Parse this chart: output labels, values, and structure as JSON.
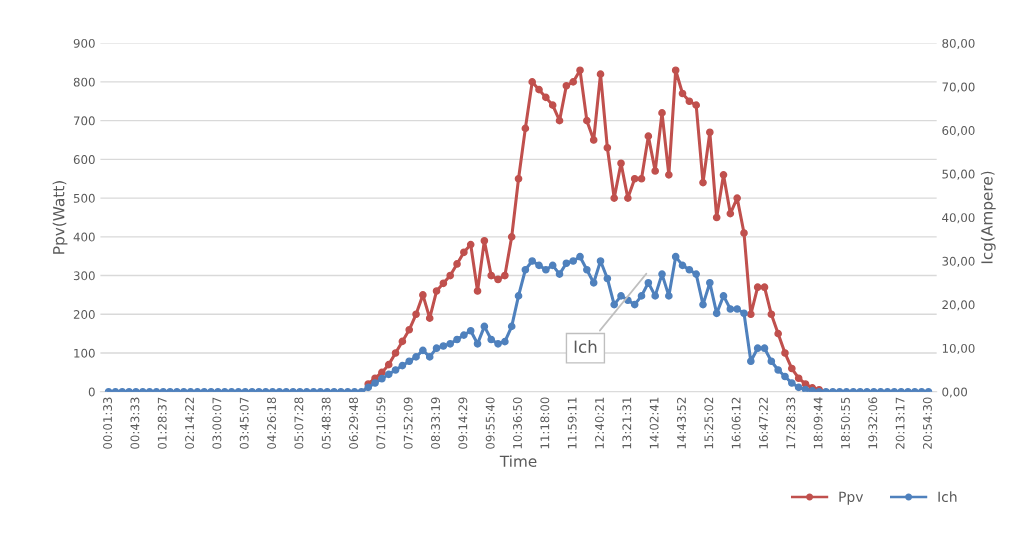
{
  "chart_data": {
    "type": "line",
    "xlabel": "Time",
    "ylabel": "Ppv(Watt)",
    "y2label": "Icg(Ampere)",
    "categories": [
      "00:01:33",
      null,
      null,
      null,
      "00:43:33",
      null,
      null,
      null,
      "01:28:37",
      null,
      null,
      null,
      "02:14:22",
      null,
      null,
      null,
      "03:00:07",
      null,
      null,
      null,
      "03:45:07",
      null,
      null,
      null,
      "04:26:18",
      null,
      null,
      null,
      "05:07:28",
      null,
      null,
      null,
      "05:48:38",
      null,
      null,
      null,
      "06:29:48",
      null,
      null,
      null,
      "07:10:59",
      null,
      null,
      null,
      "07:52:09",
      null,
      null,
      null,
      "08:33:19",
      null,
      null,
      null,
      "09:14:29",
      null,
      null,
      null,
      "09:55:40",
      null,
      null,
      null,
      "10:36:50",
      null,
      null,
      null,
      "11:18:00",
      null,
      null,
      null,
      "11:59:11",
      null,
      null,
      null,
      "12:40:21",
      null,
      null,
      null,
      "13:21:31",
      null,
      null,
      null,
      "14:02:41",
      null,
      null,
      null,
      "14:43:52",
      null,
      null,
      null,
      "15:25:02",
      null,
      null,
      null,
      "16:06:12",
      null,
      null,
      null,
      "16:47:22",
      null,
      null,
      null,
      "17:28:33",
      null,
      null,
      null,
      "18:09:44",
      null,
      null,
      null,
      "18:50:55",
      null,
      null,
      null,
      "19:32:06",
      null,
      null,
      null,
      "20:13:17",
      null,
      null,
      null,
      "20:54:30"
    ],
    "series": [
      {
        "name": "Ppv",
        "color": "#c0504d",
        "values": [
          null,
          null,
          null,
          null,
          null,
          null,
          null,
          null,
          null,
          null,
          null,
          null,
          null,
          null,
          null,
          null,
          null,
          null,
          null,
          null,
          null,
          null,
          null,
          null,
          null,
          null,
          null,
          null,
          null,
          null,
          null,
          null,
          null,
          null,
          null,
          null,
          null,
          null,
          20,
          35,
          50,
          70,
          100,
          130,
          160,
          200,
          250,
          190,
          260,
          280,
          300,
          330,
          360,
          380,
          260,
          390,
          300,
          290,
          300,
          400,
          550,
          680,
          800,
          780,
          760,
          740,
          700,
          790,
          800,
          830,
          700,
          650,
          820,
          630,
          500,
          590,
          500,
          550,
          550,
          660,
          570,
          720,
          560,
          830,
          770,
          750,
          740,
          540,
          670,
          450,
          560,
          460,
          500,
          410,
          200,
          270,
          270,
          200,
          150,
          100,
          60,
          35,
          20,
          10,
          5,
          null,
          null,
          null,
          null,
          null,
          null,
          null,
          null,
          null,
          null,
          null,
          null,
          null,
          null,
          null,
          null
        ]
      },
      {
        "name": "Ich",
        "color": "#4f81bd",
        "axis": "y2",
        "values": [
          0,
          0,
          0,
          0,
          0,
          0,
          0,
          0,
          0,
          0,
          0,
          0,
          0,
          0,
          0,
          0,
          0,
          0,
          0,
          0,
          0,
          0,
          0,
          0,
          0,
          0,
          0,
          0,
          0,
          0,
          0,
          0,
          0,
          0,
          0,
          0,
          0,
          0,
          1,
          2,
          3,
          4,
          5,
          6,
          7,
          8,
          9.5,
          8,
          10,
          10.5,
          11,
          12,
          13,
          14,
          11,
          15,
          12,
          11,
          11.5,
          15,
          22,
          28,
          30,
          29,
          28,
          29,
          27,
          29.5,
          30,
          31,
          28,
          25,
          30,
          26,
          20,
          22,
          21,
          20,
          22,
          25,
          22,
          27,
          22,
          31,
          29,
          28,
          27,
          20,
          25,
          18,
          22,
          19,
          19,
          18,
          7,
          10,
          10,
          7,
          5,
          3.5,
          2,
          1,
          0.5,
          0.2,
          0,
          0,
          0,
          0,
          0,
          0,
          0,
          0,
          0,
          0,
          0,
          0,
          0,
          0,
          0,
          0,
          0
        ]
      }
    ],
    "ylim": [
      0,
      900
    ],
    "yticks": [
      0,
      100,
      200,
      300,
      400,
      500,
      600,
      700,
      800,
      900
    ],
    "y2lim": [
      0,
      80
    ],
    "y2ticks": [
      {
        "value": 0,
        "label": "0,00"
      },
      {
        "value": 10,
        "label": "10,00"
      },
      {
        "value": 20,
        "label": "20,00"
      },
      {
        "value": 30,
        "label": "30,00"
      },
      {
        "value": 40,
        "label": "40,00"
      },
      {
        "value": 50,
        "label": "50,00"
      },
      {
        "value": 60,
        "label": "60,00"
      },
      {
        "value": 70,
        "label": "70,00"
      },
      {
        "value": 80,
        "label": "80,00"
      }
    ],
    "annotations": [
      "Ich"
    ],
    "grid": "y",
    "legend": "bottom right",
    "marker": "circle",
    "line_style": "solid"
  }
}
